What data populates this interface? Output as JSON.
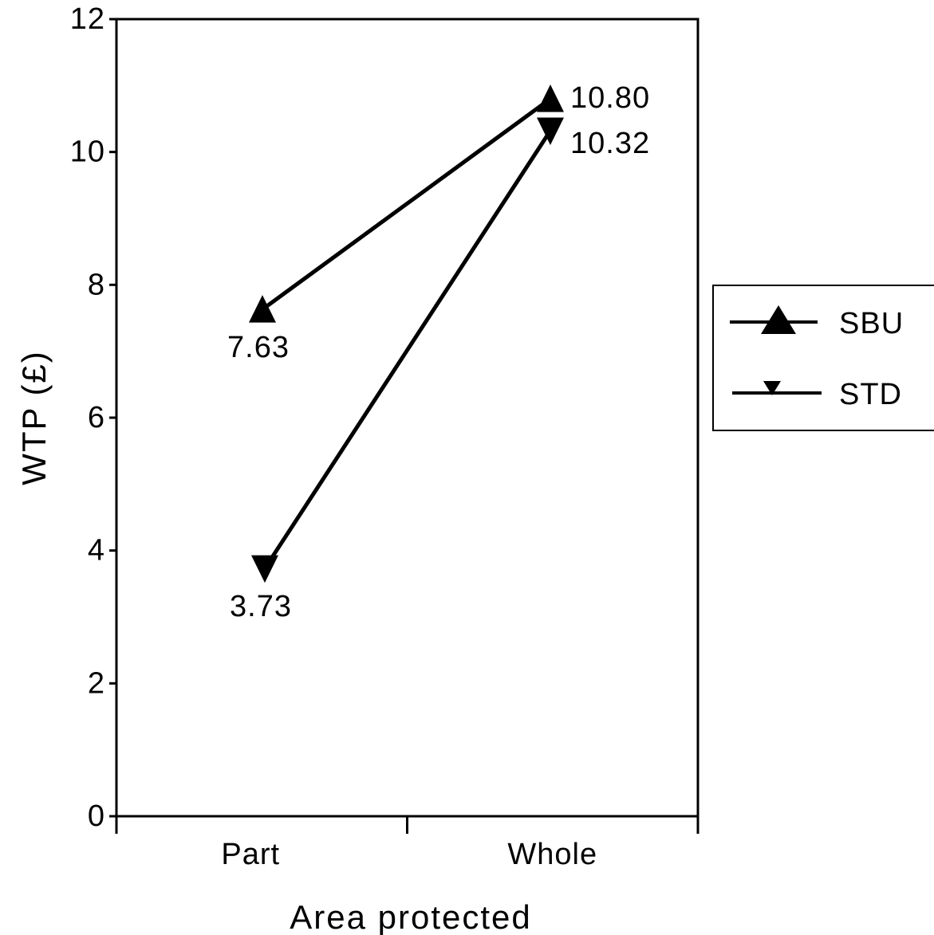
{
  "chart_data": {
    "type": "line",
    "title": "",
    "xlabel": "Area protected",
    "ylabel": "WTP (£)",
    "categories": [
      "Part",
      "Whole"
    ],
    "ylim": [
      0,
      12
    ],
    "yticks": [
      "0",
      "2",
      "4",
      "6",
      "8",
      "10",
      "12"
    ],
    "grid": false,
    "legend_position": "right",
    "series": [
      {
        "name": "SBU",
        "marker": "triangle-up",
        "values": [
          7.63,
          10.8
        ],
        "labels": [
          "7.63",
          "10.80"
        ]
      },
      {
        "name": "STD",
        "marker": "triangle-down",
        "values": [
          3.73,
          10.32
        ],
        "labels": [
          "3.73",
          "10.32"
        ]
      }
    ],
    "colors": {
      "line": "#000000",
      "background": "#ffffff"
    }
  }
}
